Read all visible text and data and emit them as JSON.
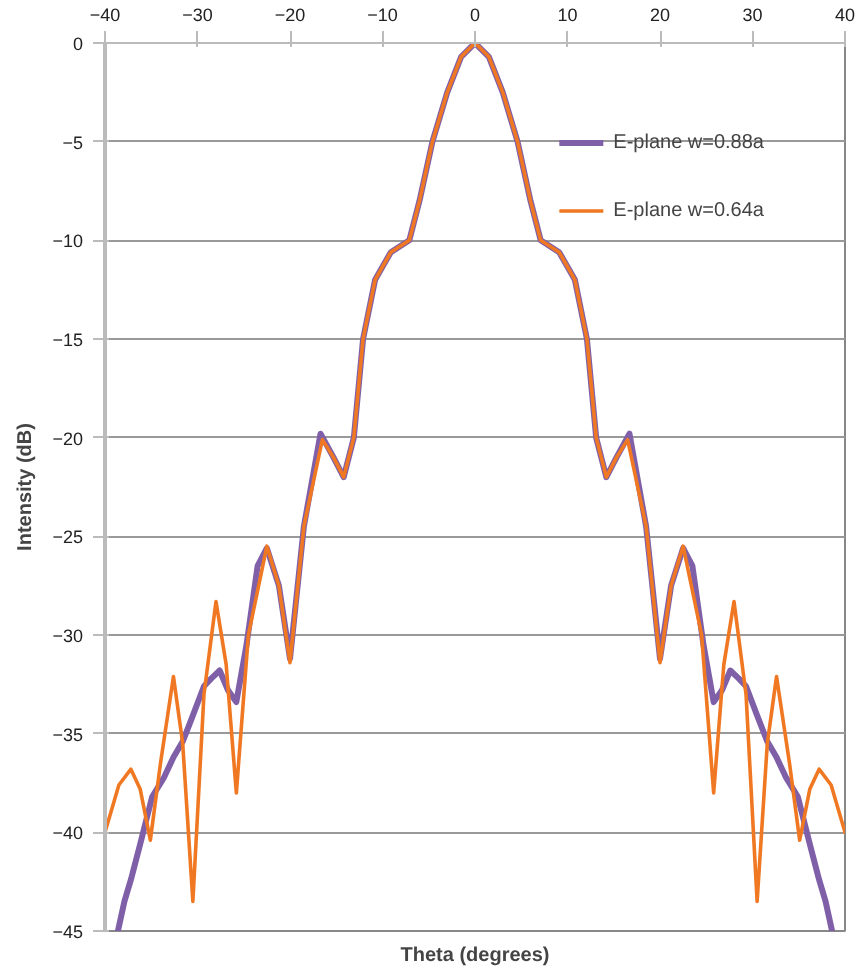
{
  "chart_data": {
    "type": "line",
    "xlabel": "Theta (degrees)",
    "ylabel": "Intensity (dB)",
    "xlim": [
      -40,
      40
    ],
    "ylim": [
      -45,
      0
    ],
    "xticks": [
      -40,
      -30,
      -20,
      -10,
      0,
      10,
      20,
      30,
      40
    ],
    "yticks": [
      0,
      -5,
      -10,
      -15,
      -20,
      -25,
      -30,
      -35,
      -40,
      -45
    ],
    "grid": "y",
    "legend": "top right",
    "line_style": "solid",
    "marker": "none",
    "series": [
      {
        "name": "E-plane w=0.88a",
        "color": "#7f60a8",
        "x": [
          -38.6,
          -37.9,
          -37.2,
          -36.2,
          -34.9,
          -33.6,
          -32.6,
          -31.6,
          -30.6,
          -29.3,
          -28.5,
          -27.6,
          -26.7,
          -25.8,
          -24.7,
          -23.5,
          -22.5,
          -21.2,
          -20.0,
          -18.5,
          -16.7,
          -15.3,
          -14.2,
          -13.1,
          -12.1,
          -10.8,
          -9.1,
          -7.1,
          -6,
          -4.6,
          -3,
          -1.5,
          0,
          1.5,
          3,
          4.6,
          6,
          7.1,
          9.1,
          10.8,
          12.1,
          13.1,
          14.2,
          15.3,
          16.7,
          18.5,
          20.0,
          21.2,
          22.5,
          23.5,
          24.7,
          25.8,
          26.7,
          27.6,
          28.5,
          29.3,
          30.6,
          31.6,
          32.6,
          33.6,
          34.9,
          36.2,
          37.2,
          37.9,
          38.6
        ],
        "values": [
          -45,
          -43.5,
          -42.4,
          -40.6,
          -38.2,
          -37.2,
          -36.2,
          -35.4,
          -34.2,
          -32.6,
          -32.2,
          -31.8,
          -32.8,
          -33.4,
          -30.5,
          -26.5,
          -25.6,
          -27.5,
          -31.2,
          -24.5,
          -19.8,
          -21,
          -22,
          -20,
          -15,
          -12,
          -10.6,
          -10,
          -8,
          -5,
          -2.5,
          -0.7,
          0,
          -0.7,
          -2.5,
          -5,
          -8,
          -10,
          -10.6,
          -12,
          -15,
          -20,
          -22,
          -21,
          -19.8,
          -24.5,
          -31.2,
          -27.5,
          -25.6,
          -26.5,
          -30.5,
          -33.4,
          -32.8,
          -31.8,
          -32.2,
          -32.6,
          -34.2,
          -35.4,
          -36.2,
          -37.2,
          -38.2,
          -40.6,
          -42.4,
          -43.5,
          -45
        ]
      },
      {
        "name": "E-plane w=0.64a",
        "color": "#f07822",
        "x": [
          -40,
          -38.5,
          -37.2,
          -36.2,
          -35.1,
          -34.0,
          -32.6,
          -31.6,
          -30.5,
          -29.3,
          -28.0,
          -26.9,
          -25.8,
          -24.5,
          -22.5,
          -21.2,
          -20.0,
          -18.5,
          -16.5,
          -15.3,
          -14.2,
          -13.1,
          -12.1,
          -10.8,
          -9.1,
          -7.1,
          -6,
          -4.6,
          -3,
          -1.5,
          0,
          1.5,
          3,
          4.6,
          6,
          7.1,
          9.1,
          10.8,
          12.1,
          13.1,
          14.2,
          15.3,
          16.5,
          18.5,
          20.0,
          21.2,
          22.5,
          24.5,
          25.8,
          26.9,
          28.0,
          29.3,
          30.5,
          31.6,
          32.6,
          34.0,
          35.1,
          36.2,
          37.2,
          38.5,
          40
        ],
        "values": [
          -40,
          -37.6,
          -36.8,
          -37.8,
          -40.4,
          -36.5,
          -32.1,
          -35.5,
          -43.5,
          -33,
          -28.3,
          -31.5,
          -38,
          -30,
          -25.5,
          -27.5,
          -31.4,
          -24.5,
          -20.1,
          -21,
          -22,
          -20,
          -15,
          -12,
          -10.6,
          -10,
          -8,
          -5,
          -2.5,
          -0.7,
          0,
          -0.7,
          -2.5,
          -5,
          -8,
          -10,
          -10.6,
          -12,
          -15,
          -20,
          -22,
          -21,
          -20.1,
          -24.5,
          -31.4,
          -27.5,
          -25.5,
          -30,
          -38,
          -31.5,
          -28.3,
          -33,
          -43.5,
          -35.5,
          -32.1,
          -36.5,
          -40.4,
          -37.8,
          -36.8,
          -37.6,
          -40
        ]
      }
    ]
  }
}
